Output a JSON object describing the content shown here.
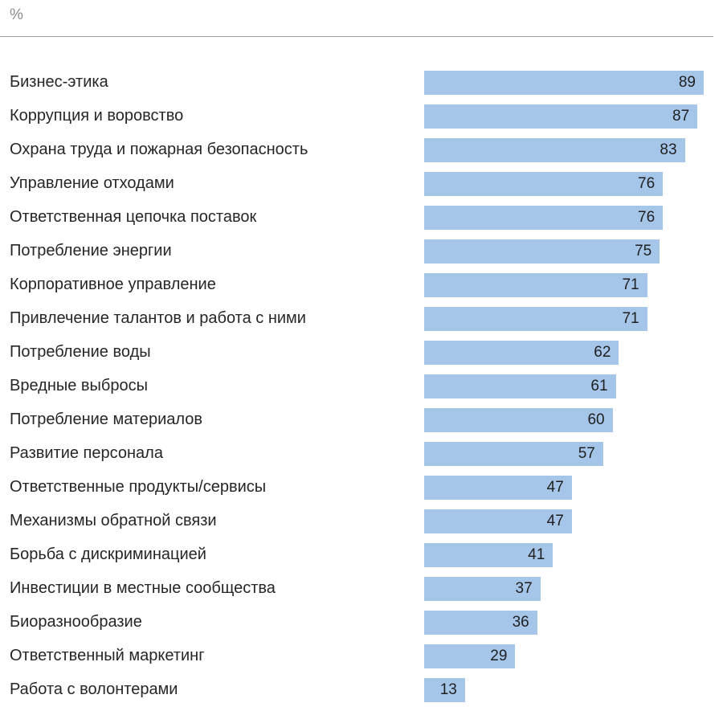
{
  "header": {
    "unit_label": "%"
  },
  "colors": {
    "bar": "#a5c6e9",
    "label_text": "#262626",
    "value_text": "#1f1f1f",
    "axis_label": "#8c8c8c",
    "divider": "#9b9b9b"
  },
  "chart_data": {
    "type": "bar",
    "orientation": "horizontal",
    "title": "",
    "xlabel": "",
    "ylabel": "%",
    "unit": "%",
    "grid": false,
    "legend": false,
    "scale_max": 89,
    "categories": [
      "Бизнес-этика",
      "Коррупция и воровство",
      "Охрана труда и пожарная безопасность",
      "Управление отходами",
      "Ответственная цепочка поставок",
      "Потребление энергии",
      "Корпоративное управление",
      "Привлечение талантов и работа с ними",
      "Потребление воды",
      "Вредные выбросы",
      "Потребление материалов",
      "Развитие персонала",
      "Ответственные продукты/сервисы",
      "Механизмы обратной связи",
      "Борьба с дискриминацией",
      "Инвестиции в местные сообщества",
      "Биоразнообразие",
      "Ответственный маркетинг",
      "Работа с волонтерами"
    ],
    "values": [
      89,
      87,
      83,
      76,
      76,
      75,
      71,
      71,
      62,
      61,
      60,
      57,
      47,
      47,
      41,
      37,
      36,
      29,
      13
    ]
  }
}
